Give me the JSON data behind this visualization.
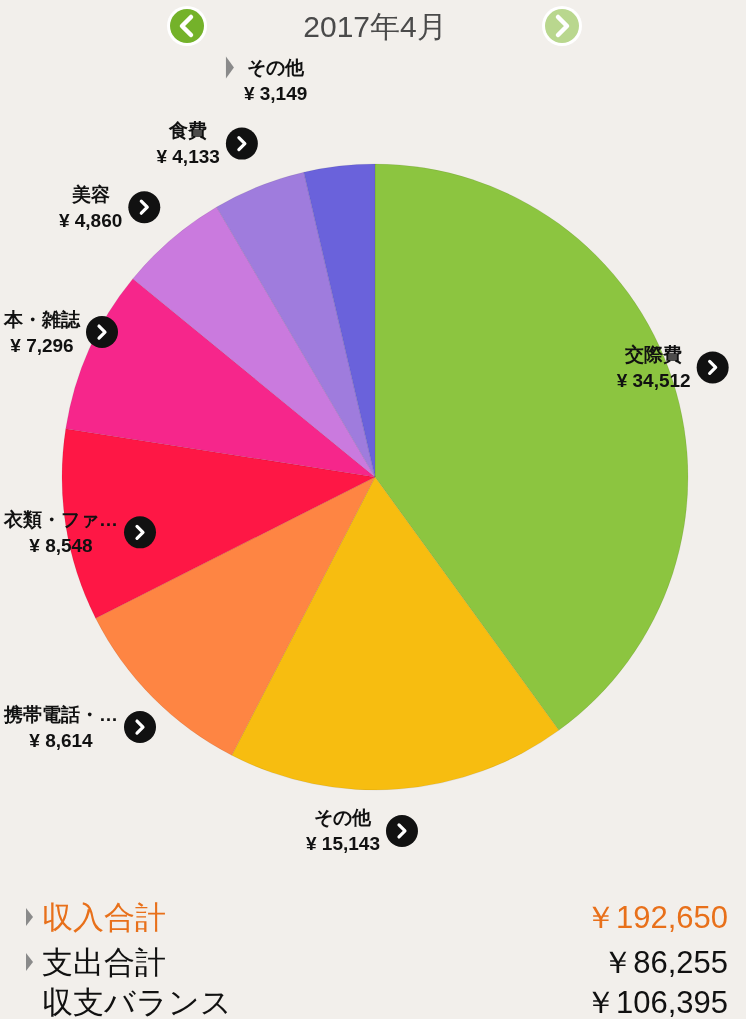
{
  "chart_data": {
    "type": "pie",
    "title": "2017年4月",
    "categories": [
      "交際費",
      "その他",
      "携帯電話・…",
      "衣類・ファ…",
      "本・雑誌",
      "美容",
      "食費",
      "その他"
    ],
    "values": [
      34512,
      15143,
      8614,
      8548,
      7296,
      4860,
      4133,
      3149
    ],
    "colors": [
      "#8cc540",
      "#f7bd10",
      "#fe8543",
      "#fe1745",
      "#f6268b",
      "#ca7ade",
      "#9f7cdd",
      "#6a62db"
    ],
    "value_labels": [
      "¥ 34,512",
      "¥ 15,143",
      "¥ 8,614",
      "¥ 8,548",
      "¥ 7,296",
      "¥ 4,860",
      "¥ 4,133",
      "¥ 3,149"
    ],
    "annotations": [
      "収入合計",
      "￥192,650",
      "支出合計",
      "￥86,255",
      "収支バランス",
      "￥106,395"
    ]
  }
}
